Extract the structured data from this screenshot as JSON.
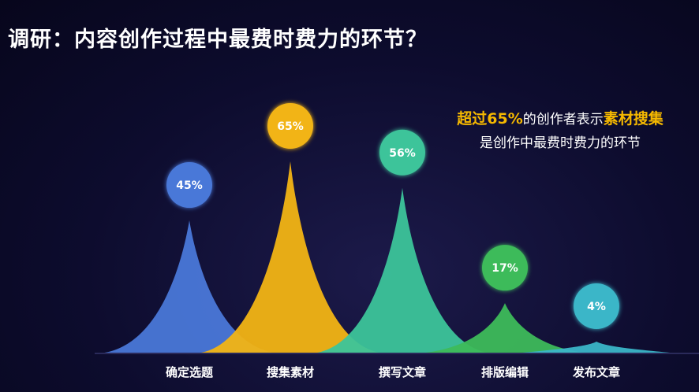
{
  "title": "调研：内容创作过程中最费时费力的环节？",
  "callout": {
    "line1_highlight_a": "超过65%",
    "line1_middle": "的创作者表示",
    "line1_highlight_b": "素材搜集",
    "line2": "是创作中最费时费力的环节"
  },
  "colors": {
    "highlight": "#f5b800"
  },
  "chart_data": {
    "type": "area",
    "categories": [
      "确定选题",
      "搜集素材",
      "撰写文章",
      "排版编辑",
      "发布文章"
    ],
    "values": [
      45,
      65,
      56,
      17,
      4
    ],
    "value_labels": [
      "45%",
      "65%",
      "56%",
      "17%",
      "4%"
    ],
    "colors": [
      "#4a78d8",
      "#f2b414",
      "#3cc49a",
      "#3dbb5a",
      "#3bb6c8"
    ],
    "ylim": [
      0,
      70
    ],
    "grid": false,
    "legend": "none"
  }
}
